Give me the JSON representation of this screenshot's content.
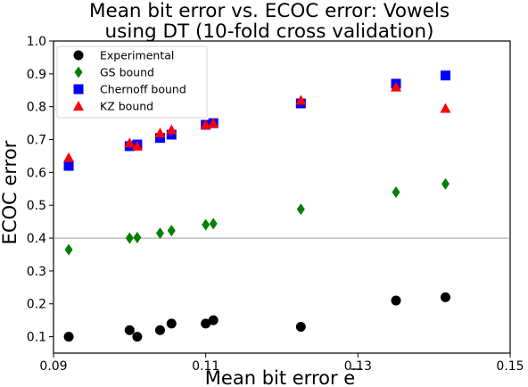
{
  "chart_data": {
    "type": "scatter",
    "title_lines": [
      "Mean bit error vs. ECOC error: Vowels",
      "using DT (10-fold cross validation)"
    ],
    "xlabel": "Mean bit error ",
    "xlabel_symbol": "e",
    "ylabel": "ECOC error",
    "xlim": [
      0.09,
      0.15
    ],
    "ylim": [
      0.05,
      1.0
    ],
    "xticks": [
      0.09,
      0.11,
      0.13,
      0.15
    ],
    "xtick_labels": [
      "0.09",
      "0.11",
      "0.13",
      "0.15"
    ],
    "yticks": [
      0.1,
      0.2,
      0.3,
      0.4,
      0.5,
      0.6,
      0.7,
      0.8,
      0.9,
      1.0
    ],
    "ytick_labels": [
      "0.1",
      "0.2",
      "0.3",
      "0.4",
      "0.5",
      "0.6",
      "0.7",
      "0.8",
      "0.9",
      "1.0"
    ],
    "reference_line_y": 0.4,
    "grid": false,
    "legend_position": "top-left",
    "series": [
      {
        "name": "Experimental",
        "marker": "circle",
        "color": "#000000",
        "points": [
          [
            0.092,
            0.1
          ],
          [
            0.1,
            0.12
          ],
          [
            0.101,
            0.1
          ],
          [
            0.104,
            0.12
          ],
          [
            0.1055,
            0.14
          ],
          [
            0.11,
            0.14
          ],
          [
            0.111,
            0.15
          ],
          [
            0.1225,
            0.13
          ],
          [
            0.135,
            0.21
          ],
          [
            0.1415,
            0.22
          ]
        ]
      },
      {
        "name": "GS bound",
        "marker": "diamond",
        "color": "#008000",
        "points": [
          [
            0.092,
            0.365
          ],
          [
            0.1,
            0.4
          ],
          [
            0.101,
            0.402
          ],
          [
            0.104,
            0.415
          ],
          [
            0.1055,
            0.423
          ],
          [
            0.11,
            0.441
          ],
          [
            0.111,
            0.444
          ],
          [
            0.1225,
            0.488
          ],
          [
            0.135,
            0.54
          ],
          [
            0.1415,
            0.565
          ]
        ]
      },
      {
        "name": "Chernoff bound",
        "marker": "square",
        "color": "#0000ff",
        "points": [
          [
            0.092,
            0.62
          ],
          [
            0.1,
            0.68
          ],
          [
            0.101,
            0.685
          ],
          [
            0.104,
            0.705
          ],
          [
            0.1055,
            0.715
          ],
          [
            0.11,
            0.745
          ],
          [
            0.111,
            0.75
          ],
          [
            0.1225,
            0.81
          ],
          [
            0.135,
            0.87
          ],
          [
            0.1415,
            0.895
          ]
        ]
      },
      {
        "name": "KZ bound",
        "marker": "triangle",
        "color": "#ff0000",
        "points": [
          [
            0.092,
            0.645
          ],
          [
            0.1,
            0.69
          ],
          [
            0.101,
            0.68
          ],
          [
            0.104,
            0.72
          ],
          [
            0.1055,
            0.73
          ],
          [
            0.11,
            0.745
          ],
          [
            0.111,
            0.75
          ],
          [
            0.1225,
            0.82
          ],
          [
            0.135,
            0.86
          ],
          [
            0.1415,
            0.795
          ]
        ]
      }
    ]
  }
}
